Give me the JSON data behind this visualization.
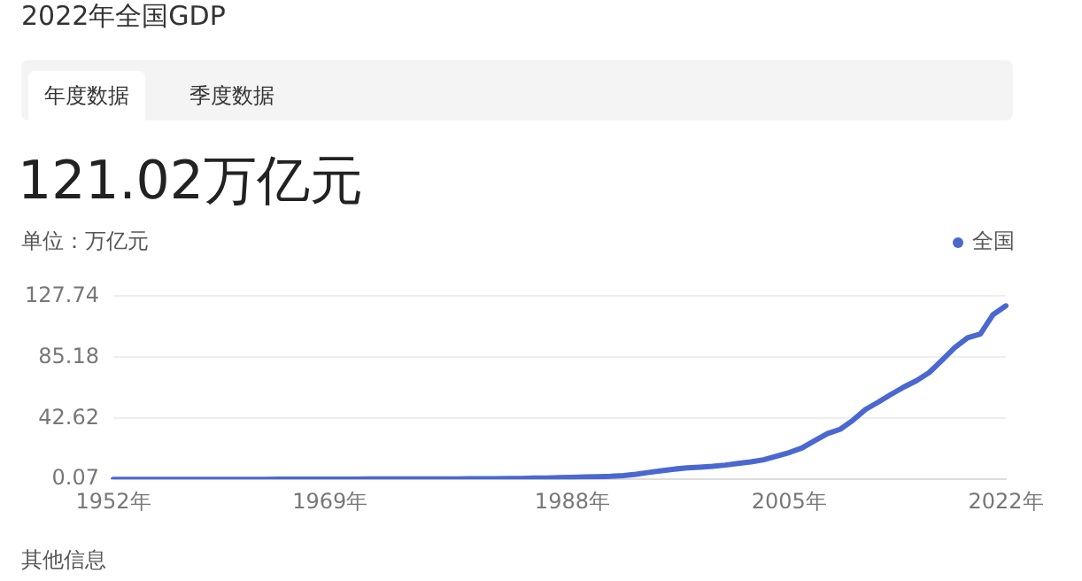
{
  "chart_data": {
    "type": "line",
    "title": "2022年全国GDP",
    "ylabel": "单位：万亿元",
    "annotations": [
      "年度数据",
      "季度数据",
      "121.02万亿元",
      "其他信息"
    ],
    "categories": [
      "1952年",
      null,
      null,
      null,
      null,
      null,
      null,
      null,
      null,
      null,
      null,
      null,
      null,
      null,
      null,
      null,
      null,
      "1969年",
      null,
      null,
      null,
      null,
      null,
      null,
      null,
      null,
      null,
      null,
      null,
      null,
      null,
      null,
      null,
      null,
      null,
      null,
      "1988年",
      null,
      null,
      null,
      null,
      null,
      null,
      null,
      null,
      null,
      null,
      null,
      null,
      null,
      null,
      null,
      null,
      "2005年",
      null,
      null,
      null,
      null,
      null,
      null,
      null,
      null,
      null,
      null,
      null,
      null,
      null,
      null,
      null,
      null,
      "2022年"
    ],
    "series": [
      {
        "name": "全国",
        "color": "#4a68d0",
        "values": [
          0.1,
          0.1,
          0.1,
          0.1,
          0.1,
          0.1,
          0.1,
          0.1,
          0.1,
          0.1,
          0.1,
          0.1,
          0.1,
          0.2,
          0.2,
          0.2,
          0.2,
          0.2,
          0.2,
          0.2,
          0.3,
          0.3,
          0.3,
          0.3,
          0.3,
          0.3,
          0.4,
          0.4,
          0.5,
          0.5,
          0.5,
          0.6,
          0.7,
          0.9,
          1.0,
          1.2,
          1.5,
          1.7,
          1.9,
          2.2,
          2.7,
          3.6,
          4.9,
          6.1,
          7.2,
          8.0,
          8.5,
          9.1,
          10.0,
          11.1,
          12.2,
          13.7,
          16.2,
          18.7,
          21.9,
          27.0,
          31.9,
          34.9,
          41.2,
          48.8,
          53.9,
          59.3,
          64.4,
          68.9,
          74.6,
          83.2,
          91.9,
          98.7,
          101.4,
          114.9,
          121.0
        ]
      }
    ],
    "ylim": [
      0.07,
      127.74
    ],
    "yticks": [
      0.07,
      42.62,
      85.18,
      127.74
    ],
    "grid": "y",
    "legend": "top right",
    "marker": "none",
    "line_style": "solid"
  }
}
